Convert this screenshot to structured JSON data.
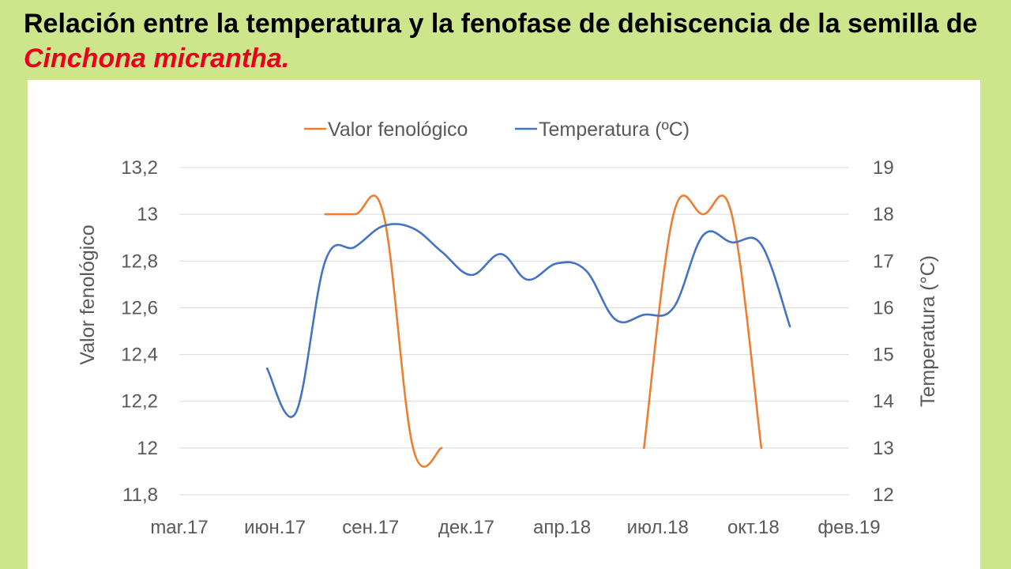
{
  "slide": {
    "title_part1": "Relación entre la temperatura y la fenofase de dehiscencia de la semilla de ",
    "title_species": "Cinchona micrantha."
  },
  "chart_data": {
    "type": "line",
    "title": "",
    "xlabel": "",
    "ylabel": "Valor fenológico",
    "y2label": "Temperatura (°C)",
    "x_ticks": [
      "mar.17",
      "июн.17",
      "сен.17",
      "дек.17",
      "апр.18",
      "июл.18",
      "окт.18",
      "фев.19"
    ],
    "ylim": [
      11.8,
      13.2
    ],
    "y_ticks": [
      "11,8",
      "12",
      "12,2",
      "12,4",
      "12,6",
      "12,8",
      "13",
      "13,2"
    ],
    "y2lim": [
      12,
      19
    ],
    "y2_ticks": [
      "12",
      "13",
      "14",
      "15",
      "16",
      "17",
      "18",
      "19"
    ],
    "grid": true,
    "legend_position": "top-center",
    "series": [
      {
        "name": "Valor fenológico",
        "axis": "left",
        "color": "#ed7d31",
        "segments": [
          [
            {
              "x": "2017-08-01",
              "y": 13.0
            },
            {
              "x": "2017-09-01",
              "y": 13.0
            },
            {
              "x": "2017-10-01",
              "y": 13.0
            },
            {
              "x": "2017-11-01",
              "y": 12.0
            },
            {
              "x": "2017-12-01",
              "y": 12.0
            }
          ],
          [
            {
              "x": "2018-07-01",
              "y": 12.0
            },
            {
              "x": "2018-08-01",
              "y": 13.0
            },
            {
              "x": "2018-09-01",
              "y": 13.0
            },
            {
              "x": "2018-10-01",
              "y": 13.0
            },
            {
              "x": "2018-11-01",
              "y": 12.0
            }
          ]
        ]
      },
      {
        "name": "Temperatura (ºC)",
        "axis": "right",
        "color": "#4472c4",
        "segments": [
          [
            {
              "x": "2017-06-01",
              "y": 14.7
            },
            {
              "x": "2017-07-01",
              "y": 13.75
            },
            {
              "x": "2017-08-01",
              "y": 17.0
            },
            {
              "x": "2017-09-01",
              "y": 17.3
            },
            {
              "x": "2017-10-01",
              "y": 17.75
            },
            {
              "x": "2017-11-01",
              "y": 17.7
            },
            {
              "x": "2017-12-01",
              "y": 17.2
            },
            {
              "x": "2018-01-01",
              "y": 16.7
            },
            {
              "x": "2018-02-01",
              "y": 17.15
            },
            {
              "x": "2018-03-01",
              "y": 16.6
            },
            {
              "x": "2018-04-01",
              "y": 16.95
            },
            {
              "x": "2018-05-01",
              "y": 16.8
            },
            {
              "x": "2018-06-01",
              "y": 15.75
            },
            {
              "x": "2018-07-01",
              "y": 15.85
            },
            {
              "x": "2018-08-01",
              "y": 16.0
            },
            {
              "x": "2018-09-01",
              "y": 17.55
            },
            {
              "x": "2018-10-01",
              "y": 17.4
            },
            {
              "x": "2018-11-01",
              "y": 17.35
            },
            {
              "x": "2018-12-01",
              "y": 15.6
            }
          ]
        ]
      }
    ]
  }
}
